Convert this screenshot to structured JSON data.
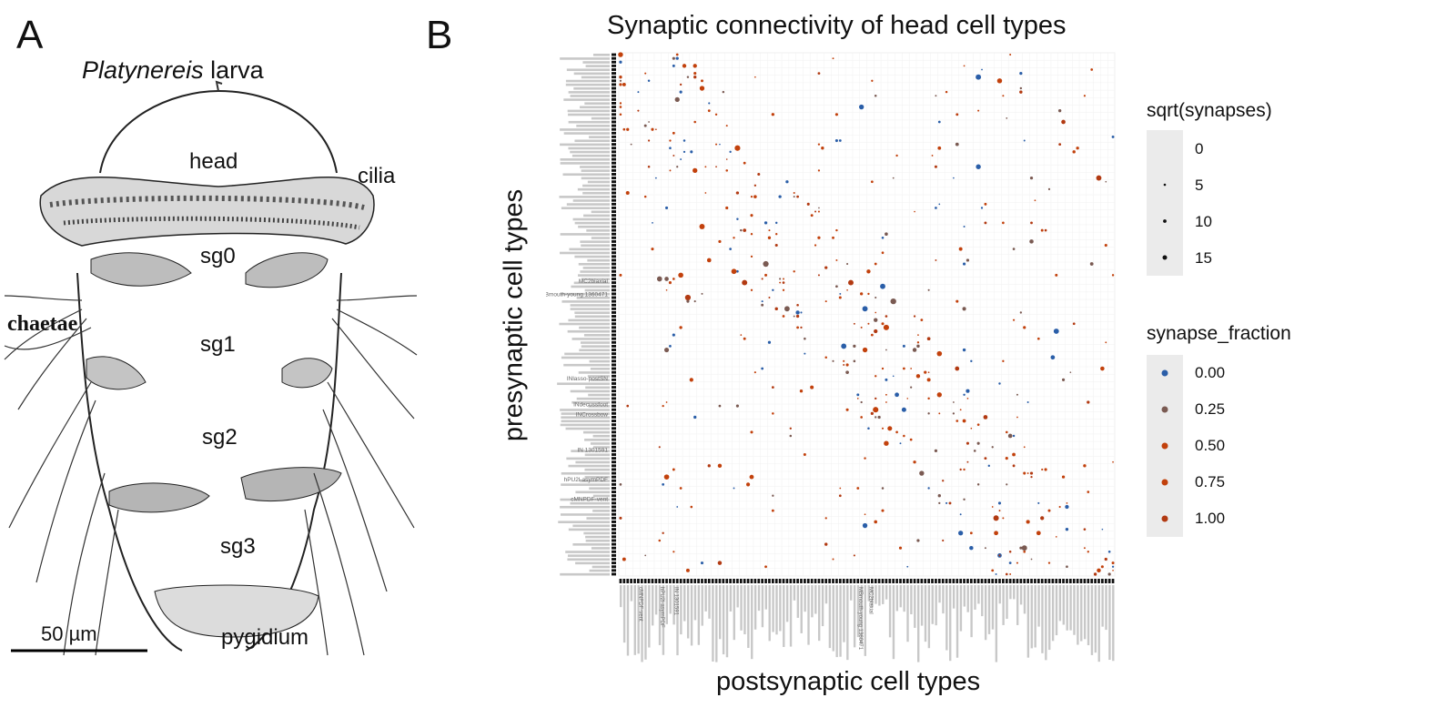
{
  "panel_a": {
    "letter": "A",
    "title_italic": "Platynereis",
    "title_rest": " larva",
    "labels": {
      "head": "head",
      "cilia": "cilia",
      "sg0": "sg0",
      "chaetae": "chaetae",
      "sg1": "sg1",
      "sg2": "sg2",
      "sg3": "sg3",
      "pygidium": "pygidium"
    },
    "scale_bar": "50 µm"
  },
  "panel_b": {
    "letter": "B",
    "chart_data": {
      "type": "scatter",
      "title": "Synaptic connectivity of head cell types",
      "xlabel": "postsynaptic cell types",
      "ylabel": "presynaptic cell types",
      "legend_position": "right",
      "size_legend": {
        "title": "sqrt(synapses)",
        "values": [
          "0",
          "5",
          "10",
          "15"
        ]
      },
      "color_legend": {
        "title": "synapse_fraction",
        "values": [
          "0.00",
          "0.25",
          "0.50",
          "0.75",
          "1.00"
        ],
        "colors": [
          "#2a5ea8",
          "#7a5a52",
          "#c2410c",
          "#c2410c",
          "#b23a12"
        ]
      },
      "visible_row_labels": [
        "MBmouth-young 1360471",
        "MC2biaxial",
        "hPU2l-asymPDF",
        "IN 1301591",
        "cMNPDF-vent",
        "INCrossbow",
        "INlasso-postSN",
        "INdecussfoot"
      ],
      "visible_col_labels": [
        "MBmouth-young 1360471",
        "MC2biaxial",
        "hPU2l-asymPDF",
        "IN 1301591",
        "cMNPDF-vent"
      ],
      "highlighted_points": [
        {
          "row": "MBmouth-young 1360471",
          "col": "IN 1301591",
          "sqrt_synapses": 14,
          "synapse_fraction": 0.9
        },
        {
          "row": "MC2biaxial",
          "col": "MC2biaxial",
          "sqrt_synapses": 9,
          "synapse_fraction": 0.8
        }
      ]
    }
  }
}
